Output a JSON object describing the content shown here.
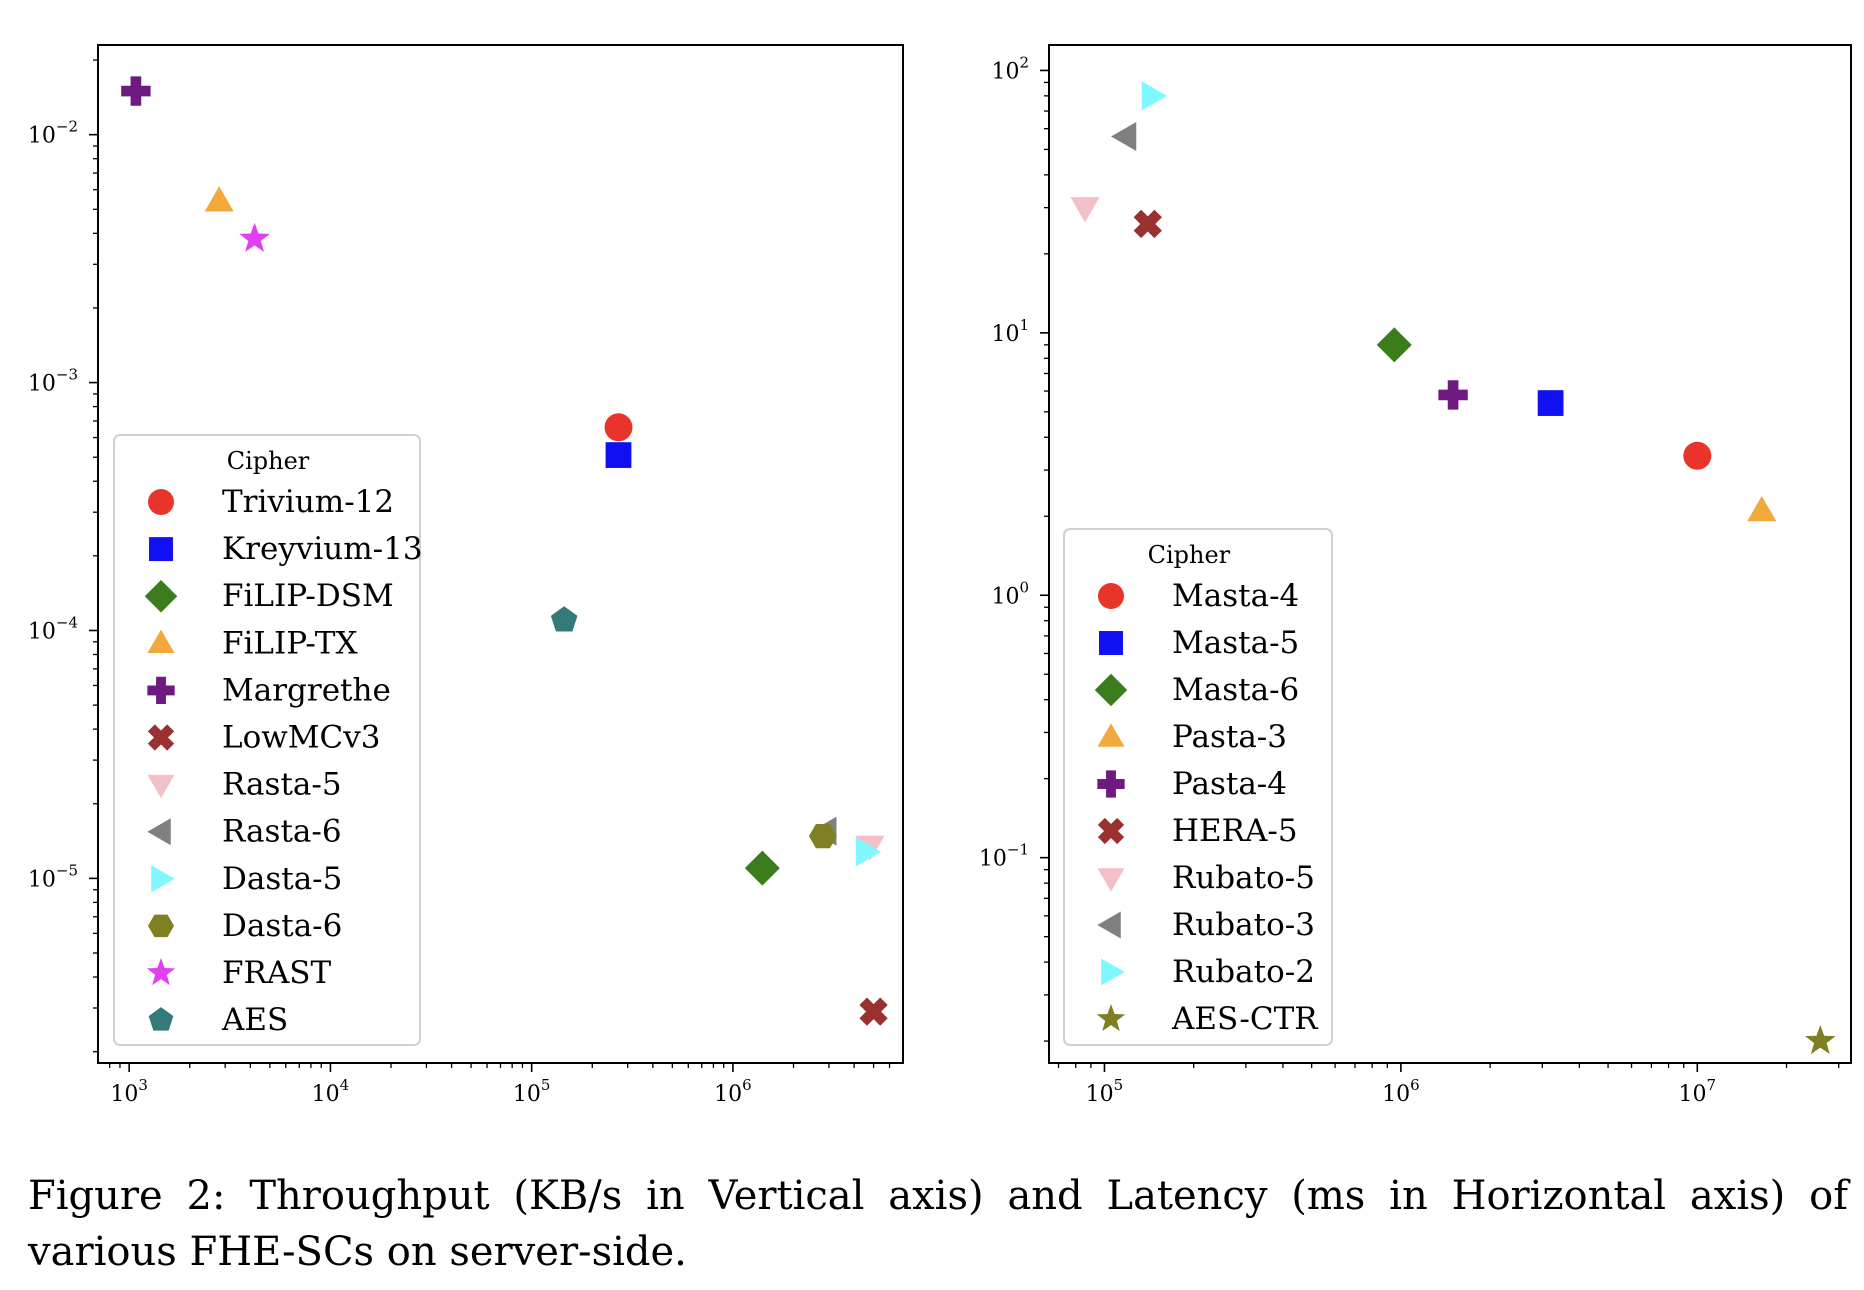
{
  "caption": "Figure 2: Throughput (KB/s in Vertical axis) and Latency (ms in Horizontal axis) of various FHE-SCs on server-side.",
  "chart_data": [
    {
      "type": "scatter",
      "title": "",
      "xlabel": "",
      "ylabel": "",
      "xscale": "log",
      "yscale": "log",
      "xlim": [
        700,
        7000000
      ],
      "ylim": [
        1.8e-06,
        0.023
      ],
      "xticks": [
        1000,
        10000,
        100000,
        1000000
      ],
      "xtick_labels": [
        {
          "base": "10",
          "exp": "3"
        },
        {
          "base": "10",
          "exp": "4"
        },
        {
          "base": "10",
          "exp": "5"
        },
        {
          "base": "10",
          "exp": "6"
        }
      ],
      "yticks": [
        1e-05,
        0.0001,
        0.001,
        0.01
      ],
      "ytick_labels": [
        {
          "base": "10",
          "exp": "−5"
        },
        {
          "base": "10",
          "exp": "−4"
        },
        {
          "base": "10",
          "exp": "−3"
        },
        {
          "base": "10",
          "exp": "−2"
        }
      ],
      "grid": false,
      "legend": {
        "title": "Cipher",
        "placement": "lower-left"
      },
      "series": [
        {
          "name": "Trivium-12",
          "marker": "circle",
          "color": "#e8342a",
          "points": [
            [
              270000,
              0.00066
            ]
          ]
        },
        {
          "name": "Kreyvium-13",
          "marker": "square",
          "color": "#1010f2",
          "points": [
            [
              270000,
              0.00051
            ]
          ]
        },
        {
          "name": "FiLIP-DSM",
          "marker": "diamond",
          "color": "#3b7d1c",
          "points": [
            [
              1400000,
              1.1e-05
            ]
          ]
        },
        {
          "name": "FiLIP-TX",
          "marker": "triangle-up",
          "color": "#f2a93b",
          "points": [
            [
              2800,
              0.0054
            ]
          ]
        },
        {
          "name": "Margrethe",
          "marker": "plus",
          "color": "#6e1a80",
          "points": [
            [
              1080,
              0.015
            ]
          ]
        },
        {
          "name": "LowMCv3",
          "marker": "x",
          "color": "#9a3030",
          "points": [
            [
              5000000,
              2.9e-06
            ]
          ]
        },
        {
          "name": "Rasta-5",
          "marker": "triangle-down",
          "color": "#f4c0c8",
          "points": [
            [
              4800000,
              1.35e-05
            ]
          ]
        },
        {
          "name": "Rasta-6",
          "marker": "triangle-left",
          "color": "#808080",
          "points": [
            [
              2900000,
              1.55e-05
            ]
          ]
        },
        {
          "name": "Dasta-5",
          "marker": "triangle-right",
          "color": "#7ff7ff",
          "points": [
            [
              4600000,
              1.28e-05
            ]
          ]
        },
        {
          "name": "Dasta-6",
          "marker": "hexagon",
          "color": "#7f7f24",
          "points": [
            [
              2800000,
              1.48e-05
            ]
          ]
        },
        {
          "name": "FRAST",
          "marker": "star",
          "color": "#e040f0",
          "points": [
            [
              4200,
              0.0038
            ]
          ]
        },
        {
          "name": "AES",
          "marker": "pentagon",
          "color": "#357a7a",
          "points": [
            [
              145000,
              0.00011
            ]
          ]
        }
      ]
    },
    {
      "type": "scatter",
      "title": "",
      "xlabel": "",
      "ylabel": "",
      "xscale": "log",
      "yscale": "log",
      "xlim": [
        65000,
        33000000
      ],
      "ylim": [
        0.0165,
        125
      ],
      "xticks": [
        100000,
        1000000,
        10000000
      ],
      "xtick_labels": [
        {
          "base": "10",
          "exp": "5"
        },
        {
          "base": "10",
          "exp": "6"
        },
        {
          "base": "10",
          "exp": "7"
        }
      ],
      "yticks": [
        0.1,
        1,
        10,
        100
      ],
      "ytick_labels": [
        {
          "base": "10",
          "exp": "−1"
        },
        {
          "base": "10",
          "exp": "0"
        },
        {
          "base": "10",
          "exp": "1"
        },
        {
          "base": "10",
          "exp": "2"
        }
      ],
      "grid": false,
      "legend": {
        "title": "Cipher",
        "placement": "lower-left"
      },
      "series": [
        {
          "name": "Masta-4",
          "marker": "circle",
          "color": "#e8342a",
          "points": [
            [
              10000000,
              3.4
            ]
          ]
        },
        {
          "name": "Masta-5",
          "marker": "square",
          "color": "#1010f2",
          "points": [
            [
              3200000,
              5.4
            ]
          ]
        },
        {
          "name": "Masta-6",
          "marker": "diamond",
          "color": "#3b7d1c",
          "points": [
            [
              950000,
              9.0
            ]
          ]
        },
        {
          "name": "Pasta-3",
          "marker": "triangle-up",
          "color": "#f2a93b",
          "points": [
            [
              16500000,
              2.1
            ]
          ]
        },
        {
          "name": "Pasta-4",
          "marker": "plus",
          "color": "#6e1a80",
          "points": [
            [
              1500000,
              5.8
            ]
          ]
        },
        {
          "name": "HERA-5",
          "marker": "x",
          "color": "#9a3030",
          "points": [
            [
              140000,
              26
            ]
          ]
        },
        {
          "name": "Rubato-5",
          "marker": "triangle-down",
          "color": "#f4c0c8",
          "points": [
            [
              86000,
              30
            ]
          ]
        },
        {
          "name": "Rubato-3",
          "marker": "triangle-left",
          "color": "#808080",
          "points": [
            [
              118000,
              56
            ]
          ]
        },
        {
          "name": "Rubato-2",
          "marker": "triangle-right",
          "color": "#7ff7ff",
          "points": [
            [
              145000,
              80
            ]
          ]
        },
        {
          "name": "AES-CTR",
          "marker": "star",
          "color": "#7f7f24",
          "points": [
            [
              26000000,
              0.02
            ]
          ]
        }
      ]
    }
  ]
}
